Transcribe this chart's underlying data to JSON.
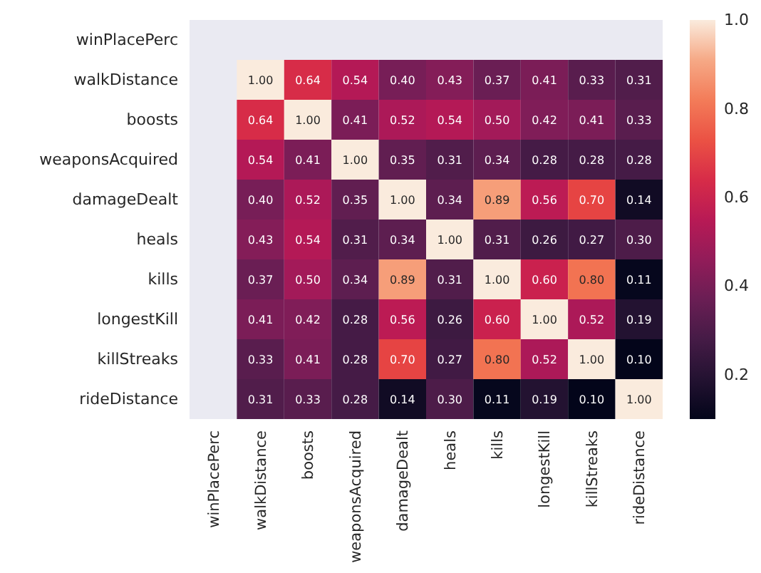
{
  "chart_data": {
    "type": "heatmap",
    "categories": [
      "winPlacePerc",
      "walkDistance",
      "boosts",
      "weaponsAcquired",
      "damageDealt",
      "heals",
      "kills",
      "longestKill",
      "killStreaks",
      "rideDistance"
    ],
    "y_categories": [
      "winPlacePerc",
      "walkDistance",
      "boosts",
      "weaponsAcquired",
      "damageDealt",
      "heals",
      "kills",
      "longestKill",
      "killStreaks",
      "rideDistance"
    ],
    "cells": [
      [
        null,
        null,
        null,
        null,
        null,
        null,
        null,
        null,
        null,
        null
      ],
      [
        null,
        1.0,
        0.64,
        0.54,
        0.4,
        0.43,
        0.37,
        0.41,
        0.33,
        0.31
      ],
      [
        null,
        0.64,
        1.0,
        0.41,
        0.52,
        0.54,
        0.5,
        0.42,
        0.41,
        0.33
      ],
      [
        null,
        0.54,
        0.41,
        1.0,
        0.35,
        0.31,
        0.34,
        0.28,
        0.28,
        0.28
      ],
      [
        null,
        0.4,
        0.52,
        0.35,
        1.0,
        0.34,
        0.89,
        0.56,
        0.7,
        0.14
      ],
      [
        null,
        0.43,
        0.54,
        0.31,
        0.34,
        1.0,
        0.31,
        0.26,
        0.27,
        0.3
      ],
      [
        null,
        0.37,
        0.5,
        0.34,
        0.89,
        0.31,
        1.0,
        0.6,
        0.8,
        0.11
      ],
      [
        null,
        0.41,
        0.42,
        0.28,
        0.56,
        0.26,
        0.6,
        1.0,
        0.52,
        0.19
      ],
      [
        null,
        0.33,
        0.41,
        0.28,
        0.7,
        0.27,
        0.8,
        0.52,
        1.0,
        0.1
      ],
      [
        null,
        0.31,
        0.33,
        0.28,
        0.14,
        0.3,
        0.11,
        0.19,
        0.1,
        1.0
      ]
    ],
    "cell_labels": [
      [
        null,
        null,
        null,
        null,
        null,
        null,
        null,
        null,
        null,
        null
      ],
      [
        null,
        "1.00",
        "0.64",
        "0.54",
        "0.40",
        "0.43",
        "0.37",
        "0.41",
        "0.33",
        "0.31"
      ],
      [
        null,
        "0.64",
        "1.00",
        "0.41",
        "0.52",
        "0.54",
        "0.50",
        "0.42",
        "0.41",
        "0.33"
      ],
      [
        null,
        "0.54",
        "0.41",
        "1.00",
        "0.35",
        "0.31",
        "0.34",
        "0.28",
        "0.28",
        "0.28"
      ],
      [
        null,
        "0.40",
        "0.52",
        "0.35",
        "1.00",
        "0.34",
        "0.89",
        "0.56",
        "0.70",
        "0.14"
      ],
      [
        null,
        "0.43",
        "0.54",
        "0.31",
        "0.34",
        "1.00",
        "0.31",
        "0.26",
        "0.27",
        "0.30"
      ],
      [
        null,
        "0.37",
        "0.50",
        "0.34",
        "0.89",
        "0.31",
        "1.00",
        "0.60",
        "0.80",
        "0.11"
      ],
      [
        null,
        "0.41",
        "0.42",
        "0.28",
        "0.56",
        "0.26",
        "0.60",
        "1.00",
        "0.52",
        "0.19"
      ],
      [
        null,
        "0.33",
        "0.41",
        "0.28",
        "0.70",
        "0.27",
        "0.80",
        "0.52",
        "1.00",
        "0.10"
      ],
      [
        null,
        "0.31",
        "0.33",
        "0.28",
        "0.14",
        "0.30",
        "0.11",
        "0.19",
        "0.10",
        "1.00"
      ]
    ],
    "clim": [
      0.1,
      1.0
    ],
    "cticks": [
      {
        "value": 0.2,
        "label": "0.2"
      },
      {
        "value": 0.4,
        "label": "0.4"
      },
      {
        "value": 0.6,
        "label": "0.6"
      },
      {
        "value": 0.8,
        "label": "0.8"
      },
      {
        "value": 1.0,
        "label": "1.0"
      }
    ]
  }
}
